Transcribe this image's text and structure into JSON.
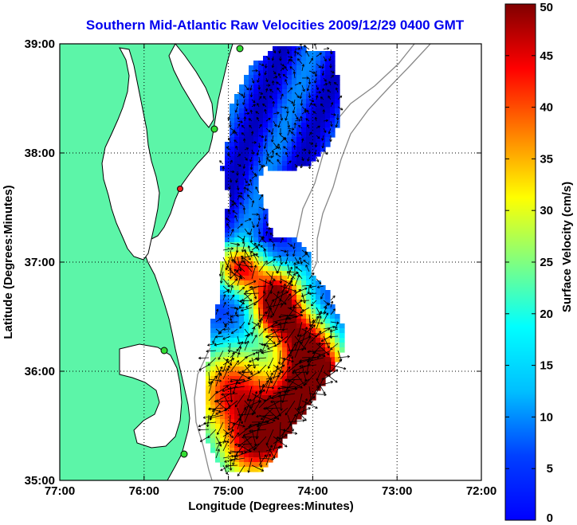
{
  "title": "Southern Mid-Atlantic Raw Velocities 2009/12/29 0400 GMT",
  "axes": {
    "xlabel": "Longitude (Degrees:Minutes)",
    "ylabel": "Latitude (Degrees:Minutes)",
    "x_ticks": [
      "77:00",
      "76:00",
      "75:00",
      "74:00",
      "73:00",
      "72:00"
    ],
    "y_ticks": [
      "39:00",
      "38:00",
      "37:00",
      "36:00",
      "35:00"
    ],
    "xlim": [
      -77,
      -72
    ],
    "ylim": [
      35,
      39
    ],
    "grid": "dotted"
  },
  "colorbar": {
    "label": "Surface Velocity (cm/s)",
    "ticks": [
      "50",
      "45",
      "40",
      "35",
      "30",
      "25",
      "20",
      "15",
      "10",
      "5",
      "0"
    ],
    "range": [
      0,
      50
    ],
    "colormap": "jet"
  },
  "colors": {
    "land": "#5cf5a8",
    "title": "#0000ee",
    "station_green": "#33dd33",
    "station_red": "#ee2222"
  }
}
